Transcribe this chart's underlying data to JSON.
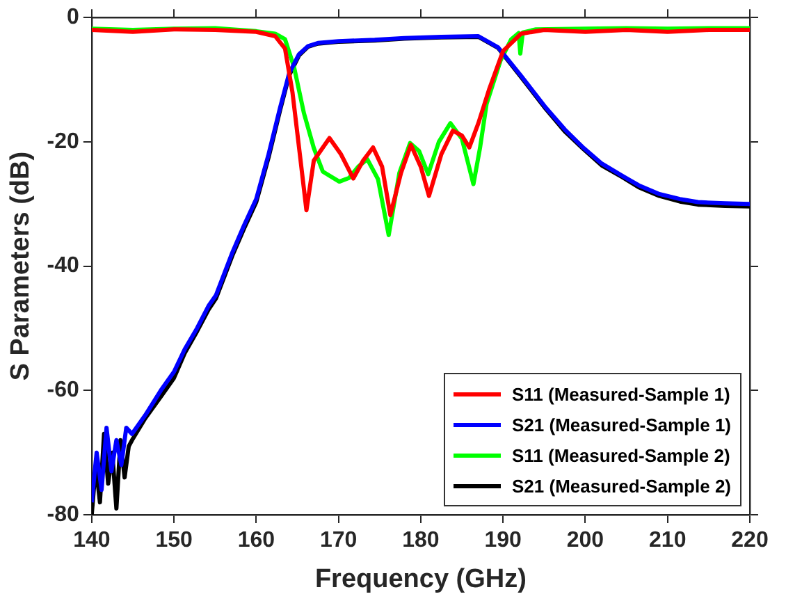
{
  "chart_data": {
    "type": "line",
    "xlabel": "Frequency (GHz)",
    "ylabel": "S Parameters (dB)",
    "xlim": [
      140,
      220
    ],
    "xticks": [
      140,
      150,
      160,
      170,
      180,
      190,
      200,
      210,
      220
    ],
    "ylim": [
      -80,
      0
    ],
    "yticks": [
      -80,
      -60,
      -40,
      -20,
      0
    ],
    "legend": "bottom right",
    "grid": false,
    "marker": "none",
    "line_style": "solid",
    "series": [
      {
        "name": "S11 (Measured-Sample 1)",
        "color": "#ff0000",
        "x": [
          140,
          145,
          150,
          155,
          160,
          162.3,
          163.5,
          164.4,
          165.3,
          166.1,
          167,
          168.9,
          170.3,
          171.8,
          173,
          174.2,
          175.3,
          176.3,
          177.6,
          178.8,
          180,
          181,
          182.5,
          183.9,
          185,
          185.9,
          187,
          188.3,
          190,
          192.2,
          195,
          200,
          205,
          210,
          215,
          220
        ],
        "values": [
          -2,
          -2.3,
          -1.9,
          -2,
          -2.3,
          -3,
          -5,
          -12,
          -22,
          -31,
          -23,
          -19.4,
          -22,
          -25.9,
          -23,
          -20.9,
          -24,
          -31.8,
          -25,
          -20.5,
          -24,
          -28.7,
          -22,
          -18.2,
          -19,
          -20.9,
          -17,
          -11.6,
          -5.4,
          -2.6,
          -2,
          -2.3,
          -2,
          -2.3,
          -2,
          -2
        ]
      },
      {
        "name": "S21 (Measured-Sample 1)",
        "color": "#0000ff",
        "x": [
          140,
          140.6,
          141.2,
          141.8,
          142.4,
          143,
          143.6,
          144.2,
          144.9,
          146.5,
          148.4,
          150,
          151.3,
          152.8,
          154.2,
          155.1,
          157.1,
          158.5,
          160,
          161.5,
          162.9,
          164,
          165.2,
          166.3,
          167.5,
          170,
          174.4,
          178,
          182.5,
          187,
          189.4,
          192.2,
          195.2,
          197.5,
          199.8,
          202,
          204.4,
          206.5,
          209,
          211.5,
          213.7,
          217,
          220
        ],
        "values": [
          -78,
          -70,
          -76,
          -66,
          -73,
          -68,
          -72,
          -66,
          -67,
          -64,
          -60,
          -57,
          -53.4,
          -50,
          -46.4,
          -44.7,
          -37.8,
          -33.5,
          -29.2,
          -22,
          -14.5,
          -9,
          -5.9,
          -4.6,
          -4.1,
          -3.8,
          -3.6,
          -3.3,
          -3.1,
          -3,
          -4.8,
          -9.4,
          -14.5,
          -18,
          -21,
          -23.5,
          -25.4,
          -27,
          -28.4,
          -29.2,
          -29.7,
          -29.9,
          -30
        ]
      },
      {
        "name": "S11 (Measured-Sample 2)",
        "color": "#00ff00",
        "x": [
          140,
          145,
          150,
          155,
          160,
          162.3,
          163.5,
          164.6,
          165.8,
          167,
          168.1,
          170.1,
          171.3,
          172.4,
          173.5,
          174.8,
          176.1,
          177.4,
          178.7,
          179.8,
          180.9,
          182.2,
          183.6,
          185,
          186.4,
          187.2,
          188,
          189.7,
          191,
          191.9,
          192.1,
          192.4,
          194,
          200,
          205,
          210,
          215,
          220
        ],
        "values": [
          -1.8,
          -2,
          -1.8,
          -1.7,
          -2.2,
          -2.6,
          -3.5,
          -8,
          -15.4,
          -21,
          -24.8,
          -26.4,
          -25.8,
          -24,
          -22.8,
          -26,
          -35,
          -25,
          -20.2,
          -21.5,
          -25.2,
          -20,
          -17,
          -19.5,
          -26.8,
          -21,
          -13.9,
          -6.9,
          -3.5,
          -2.5,
          -5.8,
          -2.4,
          -1.9,
          -1.8,
          -1.7,
          -1.8,
          -1.7,
          -1.7
        ]
      },
      {
        "name": "S21 (Measured-Sample 2)",
        "color": "#000000",
        "x": [
          140,
          140.5,
          141,
          141.5,
          142,
          142.5,
          143,
          143.5,
          144,
          144.5,
          144.9,
          146.5,
          148.4,
          150,
          151.3,
          152.8,
          154.2,
          155.1,
          157.1,
          158.5,
          160,
          161.5,
          162.9,
          164,
          165.2,
          166.3,
          167.5,
          170,
          174.4,
          178,
          182.5,
          187,
          189.4,
          192.2,
          195.2,
          197.5,
          199.8,
          202,
          204.4,
          206.5,
          209,
          211.5,
          213.7,
          217,
          220
        ],
        "values": [
          -80,
          -72,
          -78,
          -67,
          -75,
          -70,
          -79,
          -68,
          -74,
          -69,
          -68,
          -64.5,
          -61,
          -58,
          -54,
          -50.5,
          -47,
          -45.2,
          -38.3,
          -34,
          -29.7,
          -22.5,
          -14.9,
          -9.3,
          -6.1,
          -4.7,
          -4.2,
          -3.9,
          -3.7,
          -3.4,
          -3.2,
          -3.1,
          -4.9,
          -9.6,
          -14.7,
          -18.3,
          -21.2,
          -23.8,
          -25.6,
          -27.3,
          -28.7,
          -29.6,
          -30.1,
          -30.3,
          -30.4
        ]
      }
    ]
  }
}
